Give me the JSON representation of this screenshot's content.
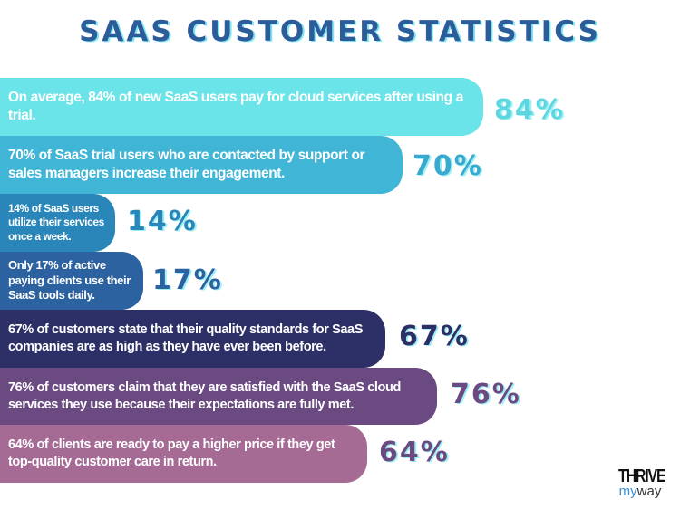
{
  "chart_data": {
    "type": "bar",
    "orientation": "horizontal",
    "title": "SAAS CUSTOMER STATISTICS",
    "bars": [
      {
        "text": "On average, 84% of new SaaS users pay for cloud services after using a trial.",
        "value": 84,
        "label": "84%",
        "color": "#6ae4e8",
        "label_color": "#5dd6e0"
      },
      {
        "text": "70% of SaaS trial users who are contacted by support or sales managers increase their engagement.",
        "value": 70,
        "label": "70%",
        "color": "#40b5d6",
        "label_color": "#3aa9cf"
      },
      {
        "text": "14% of SaaS users utilize their services once a week.",
        "value": 14,
        "label": "14%",
        "color": "#2a86b8",
        "label_color": "#2a86b8"
      },
      {
        "text": "Only 17% of active paying clients use their SaaS tools daily.",
        "value": 17,
        "label": "17%",
        "color": "#2c62a0",
        "label_color": "#2c62a0"
      },
      {
        "text": "67% of customers state that their quality standards for SaaS companies are as high as they have ever been before.",
        "value": 67,
        "label": "67%",
        "color": "#2d3066",
        "label_color": "#2d3066"
      },
      {
        "text": "76% of customers claim that they are satisfied with the SaaS cloud services they use because their expectations are fully met.",
        "value": 76,
        "label": "76%",
        "color": "#6b4a82",
        "label_color": "#6b4a82"
      },
      {
        "text": "64% of clients are ready to pay a higher price if they get top-quality customer care in return.",
        "value": 64,
        "label": "64%",
        "color": "#a56b95",
        "label_color": "#6b4a82"
      }
    ]
  },
  "logo": {
    "line1": "THRIVE",
    "my": "my",
    "way": "way"
  }
}
